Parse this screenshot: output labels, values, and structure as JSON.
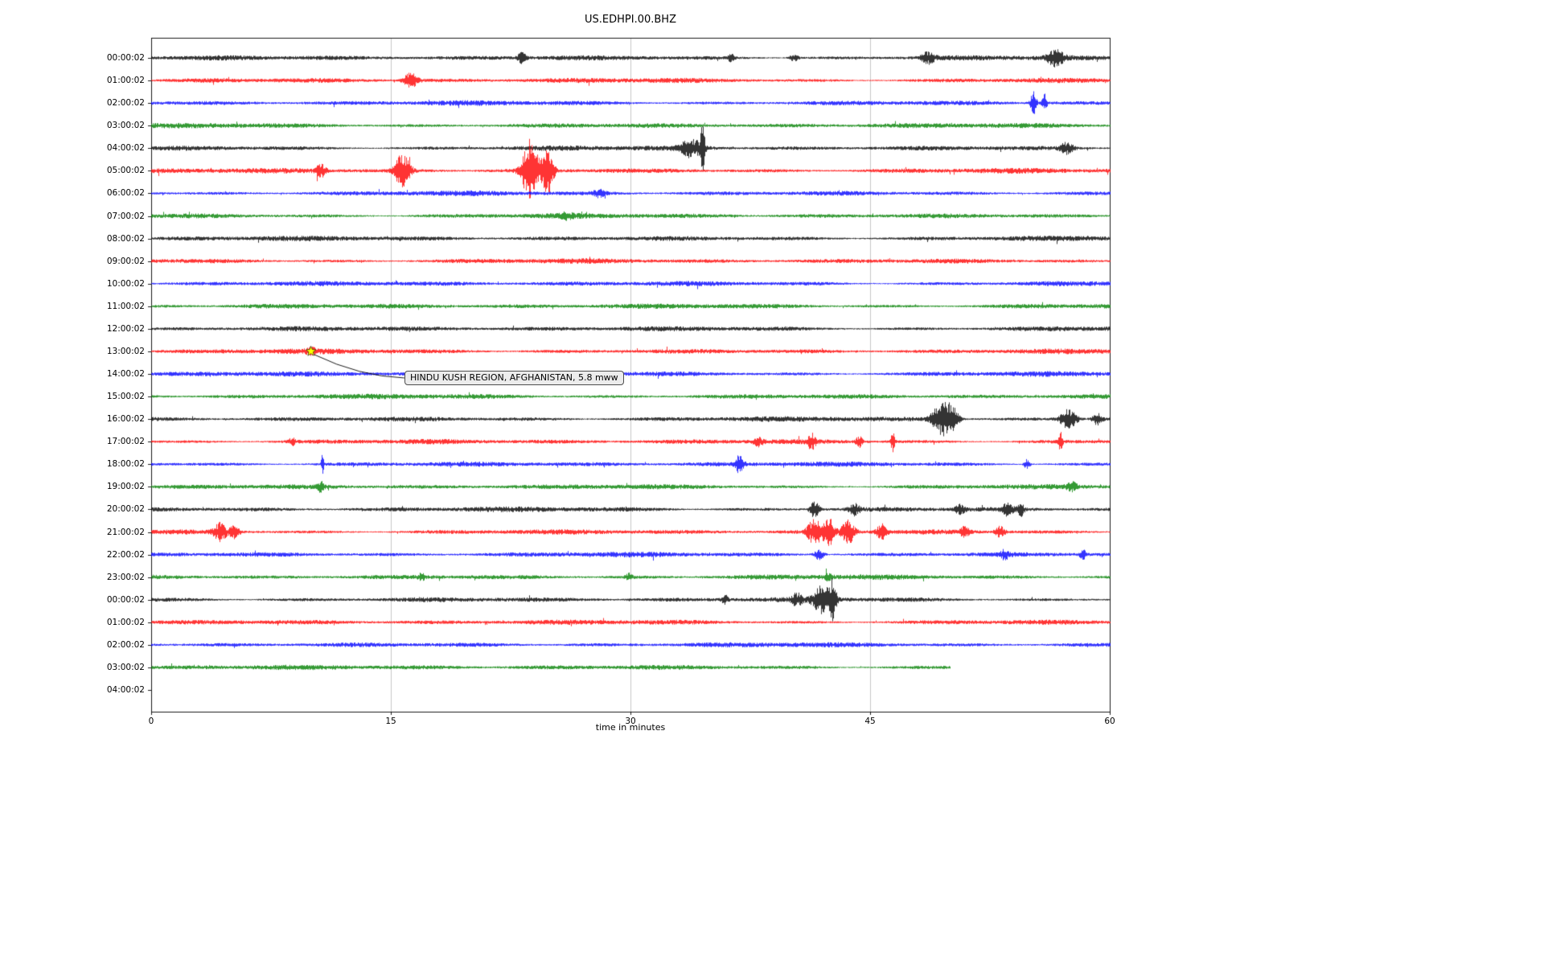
{
  "chart_data": {
    "type": "line",
    "subtype": "helicorder-day-plot",
    "title": "US.EDHPI.00.BHZ",
    "xlabel": "time in minutes",
    "xlim": [
      0,
      60
    ],
    "x_ticks": [
      0,
      15,
      30,
      45,
      60
    ],
    "grid": {
      "vertical_lines_minutes": [
        15,
        30,
        45
      ],
      "color": "#b9b9b9"
    },
    "trace_colors_cycle": [
      "#000000",
      "#ff0000",
      "#0000ff",
      "#008000"
    ],
    "rows": [
      {
        "label": "00:00:02",
        "color": "#000000",
        "end_minute": 60,
        "events": [
          {
            "m": 23.2,
            "a": 5,
            "w": 0.25
          },
          {
            "m": 36.3,
            "a": 4,
            "w": 0.2
          },
          {
            "m": 40.2,
            "a": 3,
            "w": 0.3
          },
          {
            "m": 48.6,
            "a": 5,
            "w": 0.4
          },
          {
            "m": 56.6,
            "a": 7,
            "w": 0.5
          }
        ]
      },
      {
        "label": "01:00:02",
        "color": "#ff0000",
        "end_minute": 60,
        "events": [
          {
            "m": 16.2,
            "a": 7,
            "w": 0.45
          }
        ]
      },
      {
        "label": "02:00:02",
        "color": "#0000ff",
        "end_minute": 60,
        "events": [
          {
            "m": 55.2,
            "a": 12,
            "w": 0.18
          },
          {
            "m": 55.9,
            "a": 8,
            "w": 0.15
          }
        ]
      },
      {
        "label": "03:00:02",
        "color": "#008000",
        "end_minute": 60,
        "events": []
      },
      {
        "label": "04:00:02",
        "color": "#000000",
        "end_minute": 60,
        "events": [
          {
            "m": 33.8,
            "a": 8,
            "w": 0.7
          },
          {
            "m": 34.5,
            "a": 26,
            "w": 0.12
          },
          {
            "m": 57.3,
            "a": 5,
            "w": 0.4
          }
        ]
      },
      {
        "label": "05:00:02",
        "color": "#ff0000",
        "end_minute": 60,
        "events": [
          {
            "m": 10.6,
            "a": 6,
            "w": 0.3
          },
          {
            "m": 15.7,
            "a": 16,
            "w": 0.45
          },
          {
            "m": 23.7,
            "a": 30,
            "w": 0.5
          },
          {
            "m": 24.8,
            "a": 22,
            "w": 0.35
          }
        ]
      },
      {
        "label": "06:00:02",
        "color": "#0000ff",
        "end_minute": 60,
        "events": [
          {
            "m": 28.0,
            "a": 3,
            "w": 0.4
          }
        ]
      },
      {
        "label": "07:00:02",
        "color": "#008000",
        "end_minute": 60,
        "events": [
          {
            "m": 26.0,
            "a": 3,
            "w": 0.3
          }
        ]
      },
      {
        "label": "08:00:02",
        "color": "#000000",
        "end_minute": 60,
        "events": []
      },
      {
        "label": "09:00:02",
        "color": "#ff0000",
        "end_minute": 60,
        "events": []
      },
      {
        "label": "10:00:02",
        "color": "#0000ff",
        "end_minute": 60,
        "events": []
      },
      {
        "label": "11:00:02",
        "color": "#008000",
        "end_minute": 60,
        "events": []
      },
      {
        "label": "12:00:02",
        "color": "#000000",
        "end_minute": 60,
        "events": []
      },
      {
        "label": "13:00:02",
        "color": "#ff0000",
        "end_minute": 60,
        "events": [
          {
            "m": 10.0,
            "a": 2,
            "w": 0.3
          }
        ]
      },
      {
        "label": "14:00:02",
        "color": "#0000ff",
        "end_minute": 60,
        "events": []
      },
      {
        "label": "15:00:02",
        "color": "#008000",
        "end_minute": 60,
        "events": []
      },
      {
        "label": "16:00:02",
        "color": "#000000",
        "end_minute": 60,
        "events": [
          {
            "m": 49.3,
            "a": 12,
            "w": 0.5
          },
          {
            "m": 50.0,
            "a": 16,
            "w": 0.45
          },
          {
            "m": 57.4,
            "a": 9,
            "w": 0.5
          },
          {
            "m": 59.2,
            "a": 5,
            "w": 0.3
          }
        ]
      },
      {
        "label": "17:00:02",
        "color": "#ff0000",
        "end_minute": 60,
        "events": [
          {
            "m": 8.8,
            "a": 3,
            "w": 0.2
          },
          {
            "m": 38.0,
            "a": 4,
            "w": 0.3
          },
          {
            "m": 41.3,
            "a": 7,
            "w": 0.25
          },
          {
            "m": 44.3,
            "a": 5,
            "w": 0.2
          },
          {
            "m": 46.4,
            "a": 9,
            "w": 0.12
          },
          {
            "m": 56.9,
            "a": 8,
            "w": 0.12
          }
        ]
      },
      {
        "label": "18:00:02",
        "color": "#0000ff",
        "end_minute": 60,
        "events": [
          {
            "m": 10.7,
            "a": 11,
            "w": 0.08
          },
          {
            "m": 36.8,
            "a": 8,
            "w": 0.25
          },
          {
            "m": 54.8,
            "a": 5,
            "w": 0.2
          }
        ]
      },
      {
        "label": "19:00:02",
        "color": "#008000",
        "end_minute": 60,
        "events": [
          {
            "m": 10.6,
            "a": 4,
            "w": 0.25
          },
          {
            "m": 57.6,
            "a": 4,
            "w": 0.3
          }
        ]
      },
      {
        "label": "20:00:02",
        "color": "#000000",
        "end_minute": 60,
        "events": [
          {
            "m": 41.5,
            "a": 8,
            "w": 0.3
          },
          {
            "m": 44.0,
            "a": 5,
            "w": 0.35
          },
          {
            "m": 50.6,
            "a": 4,
            "w": 0.3
          },
          {
            "m": 53.6,
            "a": 6,
            "w": 0.3
          },
          {
            "m": 54.4,
            "a": 7,
            "w": 0.2
          }
        ]
      },
      {
        "label": "21:00:02",
        "color": "#ff0000",
        "end_minute": 60,
        "events": [
          {
            "m": 4.3,
            "a": 8,
            "w": 0.4
          },
          {
            "m": 5.2,
            "a": 6,
            "w": 0.3
          },
          {
            "m": 41.5,
            "a": 11,
            "w": 0.45
          },
          {
            "m": 42.4,
            "a": 13,
            "w": 0.35
          },
          {
            "m": 43.6,
            "a": 11,
            "w": 0.4
          },
          {
            "m": 45.7,
            "a": 7,
            "w": 0.3
          },
          {
            "m": 50.9,
            "a": 5,
            "w": 0.3
          },
          {
            "m": 53.1,
            "a": 5,
            "w": 0.3
          }
        ]
      },
      {
        "label": "22:00:02",
        "color": "#0000ff",
        "end_minute": 60,
        "events": [
          {
            "m": 41.8,
            "a": 5,
            "w": 0.3
          },
          {
            "m": 53.4,
            "a": 4,
            "w": 0.25
          },
          {
            "m": 58.3,
            "a": 4,
            "w": 0.2
          }
        ]
      },
      {
        "label": "23:00:02",
        "color": "#008000",
        "end_minute": 60,
        "events": [
          {
            "m": 16.9,
            "a": 3,
            "w": 0.2
          },
          {
            "m": 29.9,
            "a": 3,
            "w": 0.2
          },
          {
            "m": 42.4,
            "a": 4,
            "w": 0.2
          }
        ]
      },
      {
        "label": "00:00:02",
        "color": "#000000",
        "end_minute": 60,
        "events": [
          {
            "m": 35.9,
            "a": 4,
            "w": 0.2
          },
          {
            "m": 40.4,
            "a": 5,
            "w": 0.3
          },
          {
            "m": 41.9,
            "a": 12,
            "w": 0.5
          },
          {
            "m": 42.6,
            "a": 18,
            "w": 0.25
          }
        ]
      },
      {
        "label": "01:00:02",
        "color": "#ff0000",
        "end_minute": 60,
        "events": []
      },
      {
        "label": "02:00:02",
        "color": "#0000ff",
        "end_minute": 60,
        "events": []
      },
      {
        "label": "03:00:02",
        "color": "#008000",
        "end_minute": 50,
        "events": []
      },
      {
        "label": "04:00:02",
        "color": null,
        "end_minute": 0,
        "events": []
      }
    ],
    "annotation": {
      "text": "HINDU KUSH REGION, AFGHANISTAN, 5.8 mww",
      "row_index": 13,
      "row_label": "13:00:02",
      "minute": 10,
      "marker": "star",
      "marker_color": "#ffff00"
    }
  }
}
